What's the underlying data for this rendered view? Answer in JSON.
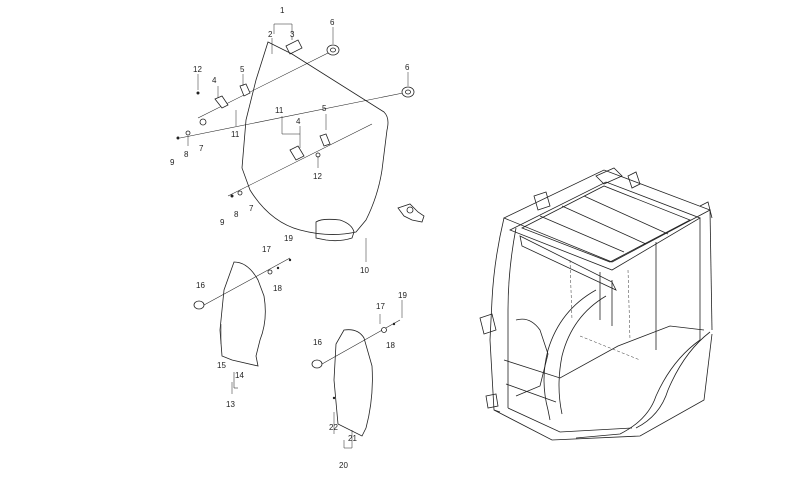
{
  "callouts": [
    {
      "id": "c1",
      "text": "1"
    },
    {
      "id": "c2",
      "text": "2"
    },
    {
      "id": "c3",
      "text": "3"
    },
    {
      "id": "c6a",
      "text": "6"
    },
    {
      "id": "c6b",
      "text": "6"
    },
    {
      "id": "c12a",
      "text": "12"
    },
    {
      "id": "c5a",
      "text": "5"
    },
    {
      "id": "c4a",
      "text": "4"
    },
    {
      "id": "c11a",
      "text": "11"
    },
    {
      "id": "c8a",
      "text": "8"
    },
    {
      "id": "c7a",
      "text": "7"
    },
    {
      "id": "c9a",
      "text": "9"
    },
    {
      "id": "c11b",
      "text": "11"
    },
    {
      "id": "c4b",
      "text": "4"
    },
    {
      "id": "c5b",
      "text": "5"
    },
    {
      "id": "c12b",
      "text": "12"
    },
    {
      "id": "c9b",
      "text": "9"
    },
    {
      "id": "c8b",
      "text": "8"
    },
    {
      "id": "c7b",
      "text": "7"
    },
    {
      "id": "c19a",
      "text": "19"
    },
    {
      "id": "c10",
      "text": "10"
    },
    {
      "id": "c17a",
      "text": "17"
    },
    {
      "id": "c16a",
      "text": "16"
    },
    {
      "id": "c18a",
      "text": "18"
    },
    {
      "id": "c15",
      "text": "15"
    },
    {
      "id": "c14",
      "text": "14"
    },
    {
      "id": "c13",
      "text": "13"
    },
    {
      "id": "c19b",
      "text": "19"
    },
    {
      "id": "c17b",
      "text": "17"
    },
    {
      "id": "c18b",
      "text": "18"
    },
    {
      "id": "c16b",
      "text": "16"
    },
    {
      "id": "c22",
      "text": "22"
    },
    {
      "id": "c21",
      "text": "21"
    },
    {
      "id": "c20",
      "text": "20"
    }
  ],
  "colors": {
    "line": "#222222",
    "background": "#ffffff"
  }
}
